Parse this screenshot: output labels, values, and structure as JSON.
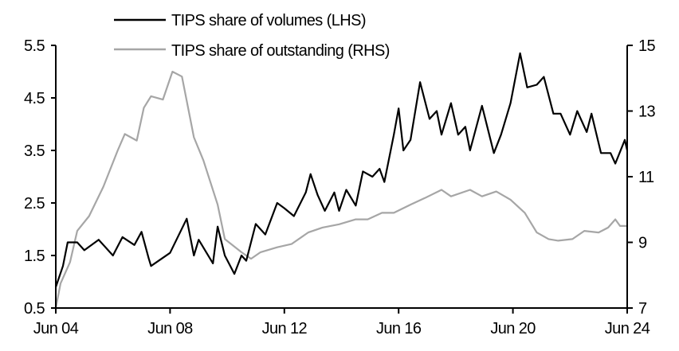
{
  "chart_data": {
    "type": "line",
    "title": "",
    "xlabel": "",
    "ylabel_left": "",
    "ylabel_right": "",
    "x_ticks": [
      "Jun 04",
      "Jun 08",
      "Jun 12",
      "Jun 16",
      "Jun 20",
      "Jun 24"
    ],
    "x_tick_dates": [
      "2004-06",
      "2008-06",
      "2012-06",
      "2016-06",
      "2020-06",
      "2024-06"
    ],
    "xlim": [
      "2004-06",
      "2024-06"
    ],
    "y_left": {
      "ticks": [
        "0.5",
        "1.5",
        "2.5",
        "3.5",
        "4.5",
        "5.5"
      ],
      "range": [
        0.5,
        5.5
      ]
    },
    "y_right": {
      "ticks": [
        "7",
        "9",
        "11",
        "13",
        "15"
      ],
      "range": [
        7,
        15
      ]
    },
    "grid": false,
    "legend_placement": "top",
    "series": [
      {
        "name": "TIPS share of volumes (LHS)",
        "axis": "left",
        "color": "#000000",
        "points": [
          [
            "2004-06",
            0.9
          ],
          [
            "2004-09",
            1.3
          ],
          [
            "2004-11",
            1.75
          ],
          [
            "2005-03",
            1.75
          ],
          [
            "2005-06",
            1.6
          ],
          [
            "2005-12",
            1.8
          ],
          [
            "2006-06",
            1.5
          ],
          [
            "2006-10",
            1.85
          ],
          [
            "2007-03",
            1.7
          ],
          [
            "2007-06",
            1.95
          ],
          [
            "2007-09",
            1.45
          ],
          [
            "2007-10",
            1.3
          ],
          [
            "2008-06",
            1.55
          ],
          [
            "2009-01",
            2.2
          ],
          [
            "2009-04",
            1.5
          ],
          [
            "2009-06",
            1.8
          ],
          [
            "2009-12",
            1.35
          ],
          [
            "2010-02",
            2.05
          ],
          [
            "2010-05",
            1.5
          ],
          [
            "2010-09",
            1.15
          ],
          [
            "2010-12",
            1.5
          ],
          [
            "2011-02",
            1.4
          ],
          [
            "2011-06",
            2.1
          ],
          [
            "2011-10",
            1.9
          ],
          [
            "2012-03",
            2.5
          ],
          [
            "2012-06",
            2.4
          ],
          [
            "2012-10",
            2.25
          ],
          [
            "2013-03",
            2.7
          ],
          [
            "2013-05",
            3.05
          ],
          [
            "2013-08",
            2.65
          ],
          [
            "2013-11",
            2.35
          ],
          [
            "2014-03",
            2.7
          ],
          [
            "2014-05",
            2.35
          ],
          [
            "2014-08",
            2.75
          ],
          [
            "2014-12",
            2.45
          ],
          [
            "2015-03",
            3.1
          ],
          [
            "2015-07",
            3.0
          ],
          [
            "2015-10",
            3.15
          ],
          [
            "2015-12",
            2.9
          ],
          [
            "2016-04",
            3.8
          ],
          [
            "2016-06",
            4.3
          ],
          [
            "2016-08",
            3.5
          ],
          [
            "2016-11",
            3.7
          ],
          [
            "2017-03",
            4.8
          ],
          [
            "2017-07",
            4.1
          ],
          [
            "2017-10",
            4.25
          ],
          [
            "2017-12",
            3.8
          ],
          [
            "2018-04",
            4.4
          ],
          [
            "2018-07",
            3.8
          ],
          [
            "2018-10",
            3.95
          ],
          [
            "2018-12",
            3.5
          ],
          [
            "2019-05",
            4.35
          ],
          [
            "2019-10",
            3.45
          ],
          [
            "2020-01",
            3.8
          ],
          [
            "2020-05",
            4.4
          ],
          [
            "2020-09",
            5.35
          ],
          [
            "2020-12",
            4.7
          ],
          [
            "2021-04",
            4.75
          ],
          [
            "2021-07",
            4.9
          ],
          [
            "2021-11",
            4.2
          ],
          [
            "2022-02",
            4.2
          ],
          [
            "2022-06",
            3.8
          ],
          [
            "2022-09",
            4.25
          ],
          [
            "2023-01",
            3.85
          ],
          [
            "2023-03",
            4.2
          ],
          [
            "2023-07",
            3.45
          ],
          [
            "2023-11",
            3.45
          ],
          [
            "2024-01",
            3.25
          ],
          [
            "2024-05",
            3.7
          ],
          [
            "2024-06",
            3.5
          ]
        ]
      },
      {
        "name": "TIPS share of outstanding (RHS)",
        "axis": "right",
        "color": "#a6a6a6",
        "points": [
          [
            "2004-06",
            7.0
          ],
          [
            "2004-08",
            7.75
          ],
          [
            "2004-12",
            8.4
          ],
          [
            "2005-03",
            9.35
          ],
          [
            "2005-08",
            9.8
          ],
          [
            "2006-02",
            10.7
          ],
          [
            "2006-08",
            11.8
          ],
          [
            "2006-11",
            12.3
          ],
          [
            "2007-04",
            12.1
          ],
          [
            "2007-07",
            13.1
          ],
          [
            "2007-10",
            13.45
          ],
          [
            "2008-03",
            13.35
          ],
          [
            "2008-07",
            14.2
          ],
          [
            "2008-11",
            14.05
          ],
          [
            "2009-04",
            12.2
          ],
          [
            "2009-08",
            11.5
          ],
          [
            "2010-02",
            10.15
          ],
          [
            "2010-05",
            9.1
          ],
          [
            "2010-12",
            8.7
          ],
          [
            "2011-04",
            8.5
          ],
          [
            "2011-08",
            8.7
          ],
          [
            "2012-03",
            8.85
          ],
          [
            "2012-09",
            8.95
          ],
          [
            "2013-04",
            9.3
          ],
          [
            "2013-10",
            9.45
          ],
          [
            "2014-05",
            9.55
          ],
          [
            "2014-12",
            9.7
          ],
          [
            "2015-05",
            9.7
          ],
          [
            "2015-11",
            9.9
          ],
          [
            "2016-04",
            9.9
          ],
          [
            "2016-11",
            10.15
          ],
          [
            "2017-05",
            10.35
          ],
          [
            "2017-12",
            10.6
          ],
          [
            "2018-04",
            10.4
          ],
          [
            "2018-12",
            10.6
          ],
          [
            "2019-05",
            10.4
          ],
          [
            "2019-11",
            10.55
          ],
          [
            "2020-05",
            10.3
          ],
          [
            "2020-11",
            9.9
          ],
          [
            "2021-04",
            9.3
          ],
          [
            "2021-09",
            9.1
          ],
          [
            "2022-01",
            9.05
          ],
          [
            "2022-07",
            9.1
          ],
          [
            "2022-12",
            9.35
          ],
          [
            "2023-06",
            9.3
          ],
          [
            "2023-10",
            9.45
          ],
          [
            "2024-01",
            9.7
          ],
          [
            "2024-03",
            9.5
          ],
          [
            "2024-06",
            9.5
          ]
        ]
      }
    ]
  }
}
